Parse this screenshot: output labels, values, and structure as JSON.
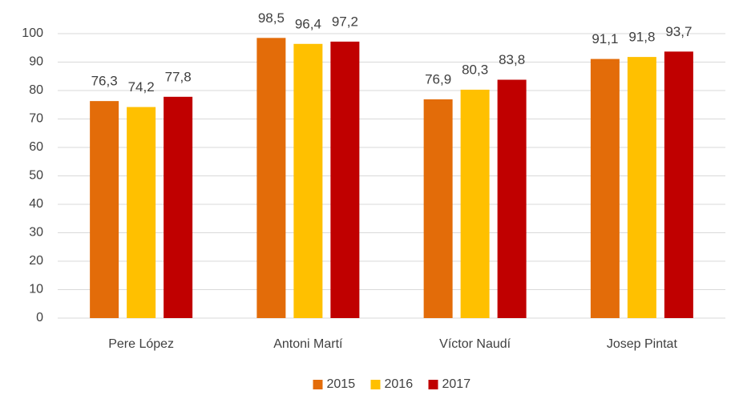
{
  "chart_data": {
    "type": "bar",
    "categories": [
      "Pere López",
      "Antoni Martí",
      "Víctor Naudí",
      "Josep Pintat"
    ],
    "series": [
      {
        "name": "2015",
        "color": "#e36c09",
        "values": [
          76.3,
          98.5,
          76.9,
          91.1
        ],
        "value_labels": [
          "76,3",
          "98,5",
          "76,9",
          "91,1"
        ]
      },
      {
        "name": "2016",
        "color": "#ffc000",
        "values": [
          74.2,
          96.4,
          80.3,
          91.8
        ],
        "value_labels": [
          "74,2",
          "96,4",
          "80,3",
          "91,8"
        ]
      },
      {
        "name": "2017",
        "color": "#c00000",
        "values": [
          77.8,
          97.2,
          83.8,
          93.7
        ],
        "value_labels": [
          "77,8",
          "97,2",
          "83,8",
          "93,7"
        ]
      }
    ],
    "ylim": [
      0,
      100
    ],
    "yticks": [
      0,
      10,
      20,
      30,
      40,
      50,
      60,
      70,
      80,
      90,
      100
    ],
    "grid": true,
    "legend": "bottom"
  }
}
